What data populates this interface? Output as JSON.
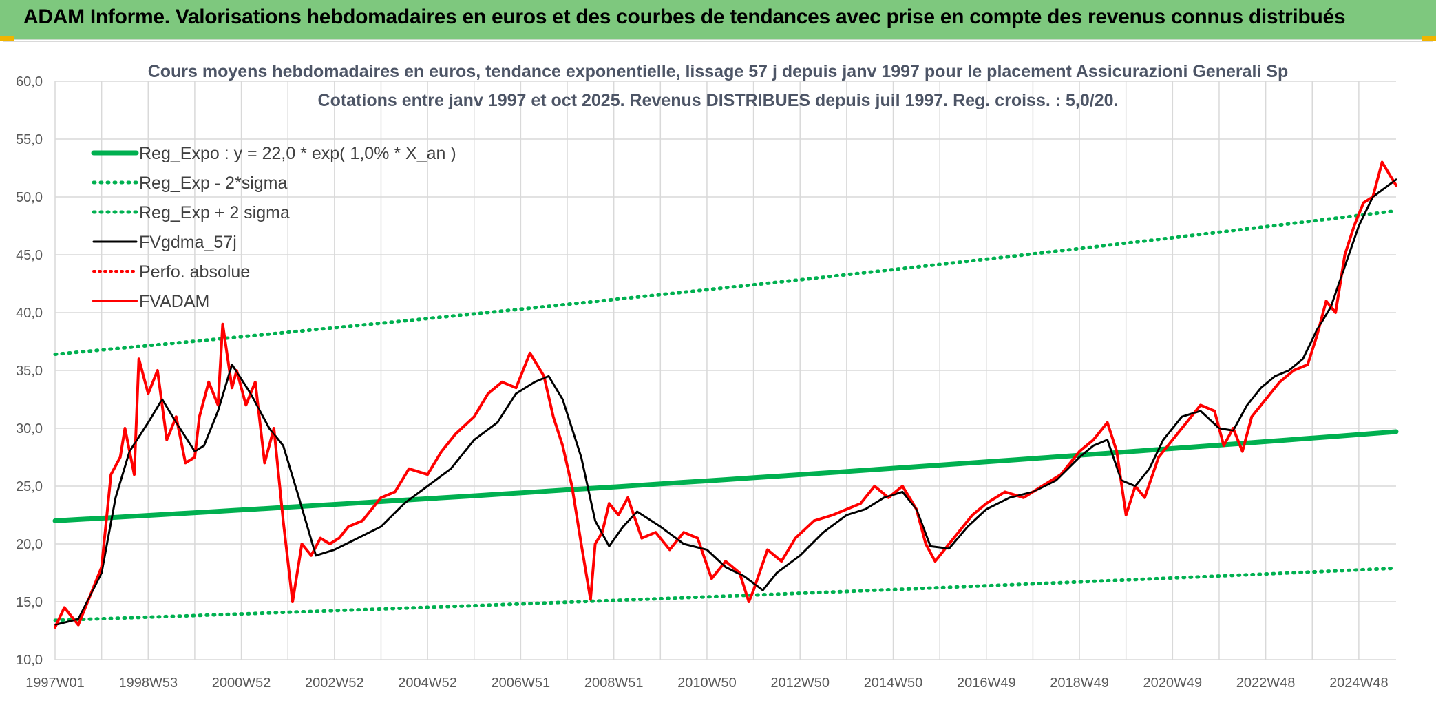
{
  "banner": {
    "title": "ADAM Informe. Valorisations hebdomadaires en euros et des courbes de tendances avec prise en compte des revenus connus distribués"
  },
  "colors": {
    "banner_bg": "#7ec87e",
    "trend": "#00b050",
    "smooth": "#000000",
    "adam": "#ff0000",
    "grid": "#d9d9d9"
  },
  "chart_data": {
    "type": "line",
    "title": "Cours moyens hebdomadaires en euros, tendance exponentielle, lissage 57 j depuis janv 1997 pour le placement Assicurazioni Generali Sp",
    "subtitle": "Cotations entre janv 1997 et oct 2025. Revenus DISTRIBUES depuis juil 1997. Reg. croiss. : 5,0/20.",
    "ylim": [
      10,
      60
    ],
    "y_ticks": [
      "10,0",
      "15,0",
      "20,0",
      "25,0",
      "30,0",
      "35,0",
      "40,0",
      "45,0",
      "50,0",
      "55,0",
      "60,0"
    ],
    "x_ticks": [
      "1997W01",
      "1998W53",
      "2000W52",
      "2002W52",
      "2004W52",
      "2006W51",
      "2008W51",
      "2010W50",
      "2012W50",
      "2014W50",
      "2016W49",
      "2018W49",
      "2020W49",
      "2022W48",
      "2024W48"
    ],
    "x_range": [
      1997.0,
      2025.8
    ],
    "legend_position": "top-left",
    "series": [
      {
        "name": "Reg_Expo : y = 22,0 * exp( 1,0% *  X_an )",
        "style": "solid-green-thick",
        "x": [
          1997.0,
          2025.8
        ],
        "y": [
          22.0,
          29.7
        ]
      },
      {
        "name": "Reg_Exp - 2*sigma",
        "style": "dotted-green",
        "x": [
          1997.0,
          2025.8
        ],
        "y": [
          13.4,
          17.9
        ]
      },
      {
        "name": "Reg_Exp + 2 sigma",
        "style": "dotted-green",
        "x": [
          1997.0,
          2025.8
        ],
        "y": [
          36.4,
          48.8
        ]
      },
      {
        "name": "FVgdma_57j",
        "style": "solid-black",
        "x": [
          1997.0,
          1997.5,
          1998.0,
          1998.3,
          1998.6,
          1999.0,
          1999.3,
          1999.6,
          2000.0,
          2000.2,
          2000.5,
          2000.8,
          2001.2,
          2001.6,
          2001.9,
          2002.2,
          2002.6,
          2003.0,
          2003.5,
          2004.0,
          2004.5,
          2005.0,
          2005.5,
          2006.0,
          2006.5,
          2006.9,
          2007.3,
          2007.6,
          2007.9,
          2008.3,
          2008.6,
          2008.9,
          2009.2,
          2009.5,
          2010.0,
          2010.5,
          2011.0,
          2011.4,
          2011.8,
          2012.2,
          2012.5,
          2013.0,
          2013.5,
          2014.0,
          2014.4,
          2014.8,
          2015.2,
          2015.5,
          2015.8,
          2016.2,
          2016.6,
          2017.0,
          2017.5,
          2018.0,
          2018.5,
          2019.0,
          2019.3,
          2019.6,
          2019.9,
          2020.2,
          2020.5,
          2020.8,
          2021.2,
          2021.6,
          2022.0,
          2022.3,
          2022.6,
          2022.9,
          2023.2,
          2023.5,
          2023.8,
          2024.1,
          2024.4,
          2024.7,
          2025.0,
          2025.3,
          2025.8
        ],
        "y": [
          13.0,
          13.5,
          17.5,
          24.0,
          28.0,
          30.5,
          32.5,
          30.5,
          28.0,
          28.5,
          31.5,
          35.5,
          33.0,
          30.0,
          28.5,
          24.5,
          19.0,
          19.5,
          20.5,
          21.5,
          23.5,
          25.0,
          26.5,
          29.0,
          30.5,
          33.0,
          34.0,
          34.5,
          32.5,
          27.5,
          22.0,
          19.8,
          21.5,
          22.8,
          21.5,
          20.0,
          19.5,
          18.0,
          17.2,
          16.0,
          17.5,
          19.0,
          21.0,
          22.5,
          23.0,
          24.0,
          24.5,
          23.0,
          19.8,
          19.6,
          21.5,
          23.0,
          24.0,
          24.5,
          25.5,
          27.5,
          28.5,
          29.0,
          25.5,
          25.0,
          26.5,
          29.0,
          31.0,
          31.5,
          30.0,
          29.8,
          32.0,
          33.5,
          34.5,
          35.0,
          36.0,
          38.5,
          40.5,
          44.0,
          47.5,
          50.0,
          51.5
        ]
      },
      {
        "name": "Perfo. absolue",
        "style": "dotted-red",
        "x": [],
        "y": []
      },
      {
        "name": "FVADAM",
        "style": "solid-red-thick",
        "x": [
          1997.0,
          1997.2,
          1997.5,
          1997.8,
          1998.0,
          1998.2,
          1998.4,
          1998.5,
          1998.7,
          1998.8,
          1999.0,
          1999.2,
          1999.4,
          1999.6,
          1999.8,
          2000.0,
          2000.1,
          2000.3,
          2000.5,
          2000.6,
          2000.8,
          2000.9,
          2001.1,
          2001.3,
          2001.5,
          2001.7,
          2001.9,
          2002.1,
          2002.3,
          2002.5,
          2002.7,
          2002.9,
          2003.1,
          2003.3,
          2003.6,
          2004.0,
          2004.3,
          2004.6,
          2005.0,
          2005.3,
          2005.6,
          2006.0,
          2006.3,
          2006.6,
          2006.9,
          2007.2,
          2007.5,
          2007.7,
          2007.9,
          2008.1,
          2008.3,
          2008.5,
          2008.6,
          2008.75,
          2008.9,
          2009.1,
          2009.3,
          2009.6,
          2009.9,
          2010.2,
          2010.5,
          2010.8,
          2011.1,
          2011.4,
          2011.7,
          2011.9,
          2012.0,
          2012.3,
          2012.6,
          2012.9,
          2013.3,
          2013.7,
          2014.0,
          2014.3,
          2014.6,
          2014.9,
          2015.2,
          2015.5,
          2015.7,
          2015.9,
          2016.1,
          2016.4,
          2016.7,
          2017.0,
          2017.4,
          2017.8,
          2018.2,
          2018.6,
          2019.0,
          2019.3,
          2019.6,
          2019.8,
          2020.0,
          2020.2,
          2020.4,
          2020.7,
          2021.0,
          2021.3,
          2021.6,
          2021.9,
          2022.1,
          2022.3,
          2022.5,
          2022.7,
          2023.0,
          2023.3,
          2023.6,
          2023.9,
          2024.1,
          2024.3,
          2024.5,
          2024.7,
          2024.9,
          2025.1,
          2025.3,
          2025.5,
          2025.8
        ],
        "y": [
          12.8,
          14.5,
          13.0,
          16.0,
          18.0,
          26.0,
          27.5,
          30.0,
          26.0,
          36.0,
          33.0,
          35.0,
          29.0,
          31.0,
          27.0,
          27.5,
          31.0,
          34.0,
          32.0,
          39.0,
          33.5,
          35.0,
          32.0,
          34.0,
          27.0,
          30.0,
          22.0,
          15.0,
          20.0,
          19.0,
          20.5,
          20.0,
          20.5,
          21.5,
          22.0,
          24.0,
          24.5,
          26.5,
          26.0,
          28.0,
          29.5,
          31.0,
          33.0,
          34.0,
          33.5,
          36.5,
          34.5,
          31.0,
          28.5,
          25.0,
          20.0,
          15.2,
          20.0,
          21.0,
          23.5,
          22.5,
          24.0,
          20.5,
          21.0,
          19.5,
          21.0,
          20.5,
          17.0,
          18.5,
          17.5,
          15.0,
          16.0,
          19.5,
          18.5,
          20.5,
          22.0,
          22.5,
          23.0,
          23.5,
          25.0,
          24.0,
          25.0,
          23.0,
          20.0,
          18.5,
          19.5,
          21.0,
          22.5,
          23.5,
          24.5,
          24.0,
          25.0,
          26.0,
          28.0,
          29.0,
          30.5,
          28.0,
          22.5,
          25.0,
          24.0,
          27.5,
          29.0,
          30.5,
          32.0,
          31.5,
          28.5,
          30.0,
          28.0,
          31.0,
          32.5,
          34.0,
          35.0,
          35.5,
          38.0,
          41.0,
          40.0,
          45.0,
          47.5,
          49.5,
          50.0,
          53.0,
          51.0
        ]
      }
    ]
  }
}
